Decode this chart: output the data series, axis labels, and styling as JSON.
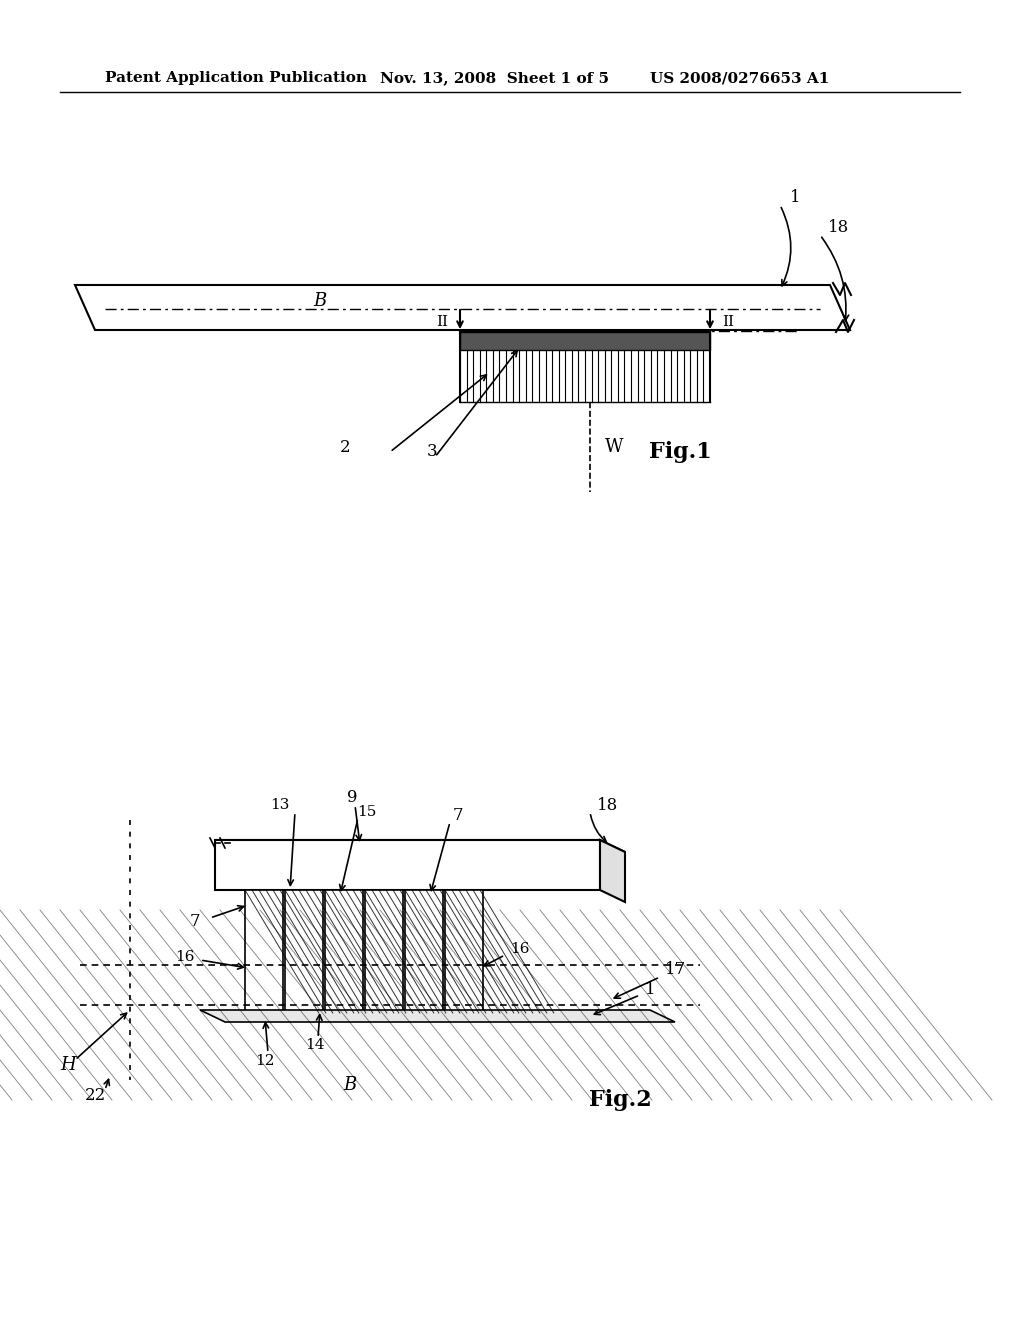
{
  "bg_color": "#ffffff",
  "header_text": "Patent Application Publication",
  "header_date": "Nov. 13, 2008  Sheet 1 of 5",
  "header_patent": "US 2008/0276653 A1",
  "fig1_label": "Fig.1",
  "fig2_label": "Fig.2"
}
